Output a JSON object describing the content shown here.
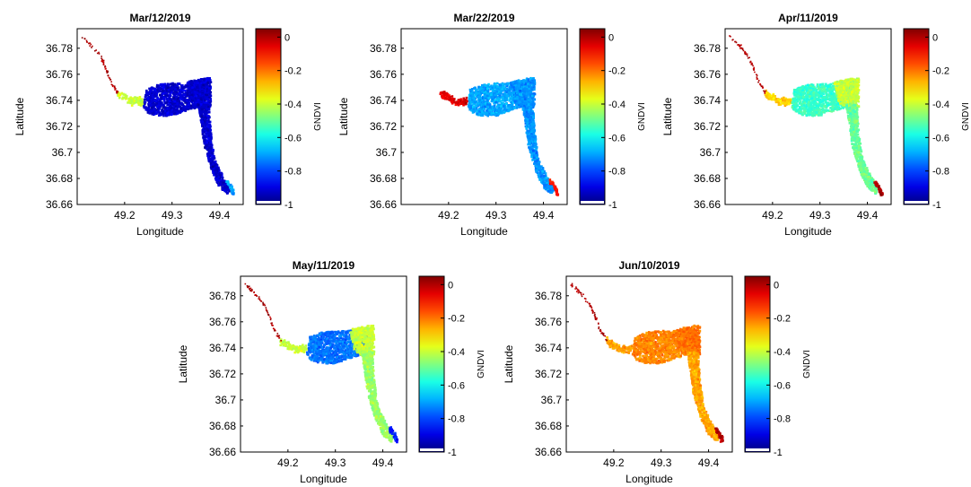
{
  "figure": {
    "panels": [
      {
        "title": "Mar/12/2019",
        "colorbar_label": "GNDVI"
      },
      {
        "title": "Mar/22/2019",
        "colorbar_label": "GNDVI"
      },
      {
        "title": "Apr/11/2019",
        "colorbar_label": "GNDVI"
      },
      {
        "title": "May/11/2019",
        "colorbar_label": "GNDVI"
      },
      {
        "title": "Jun/10/2019",
        "colorbar_label": "GNDVI"
      }
    ]
  },
  "chart_data": [
    {
      "type": "heatmap",
      "title": "Mar/12/2019",
      "xlabel": "Longitude",
      "ylabel": "Latitude",
      "colorbar_label": "GNDVI",
      "x_ticks": [
        "49.2",
        "49.3",
        "49.4"
      ],
      "y_ticks": [
        "36.78",
        "36.76",
        "36.74",
        "36.72",
        "36.7",
        "36.68",
        "36.66"
      ],
      "colorbar_ticks": [
        "0",
        "-0.2",
        "-0.4",
        "-0.6",
        "-0.8",
        "-1"
      ],
      "xlim": [
        49.1,
        49.45
      ],
      "ylim": [
        36.66,
        36.795
      ],
      "clim": [
        -1,
        0.05
      ],
      "colormap": "jet",
      "zones": {
        "upstream_channel": 0.0,
        "west_lagoon": -0.4,
        "central_basin": -0.92,
        "east_basin": -0.92,
        "south_arm": -0.92,
        "southern_tip": -0.7
      }
    },
    {
      "type": "heatmap",
      "title": "Mar/22/2019",
      "xlabel": "Longitude",
      "ylabel": "Latitude",
      "colorbar_label": "GNDVI",
      "x_ticks": [
        "49.2",
        "49.3",
        "49.4"
      ],
      "y_ticks": [
        "36.78",
        "36.76",
        "36.74",
        "36.72",
        "36.7",
        "36.68",
        "36.66"
      ],
      "colorbar_ticks": [
        "0",
        "-0.2",
        "-0.4",
        "-0.6",
        "-0.8",
        "-1"
      ],
      "xlim": [
        49.1,
        49.45
      ],
      "ylim": [
        36.66,
        36.795
      ],
      "clim": [
        -1,
        0.05
      ],
      "colormap": "jet",
      "zones": {
        "upstream_channel": null,
        "west_lagoon": -0.05,
        "central_basin": -0.7,
        "east_basin": -0.72,
        "south_arm": -0.72,
        "southern_tip": -0.1
      }
    },
    {
      "type": "heatmap",
      "title": "Apr/11/2019",
      "xlabel": "Longitude",
      "ylabel": "Latitude",
      "colorbar_label": "GNDVI",
      "x_ticks": [
        "49.2",
        "49.3",
        "49.4"
      ],
      "y_ticks": [
        "36.78",
        "36.76",
        "36.74",
        "36.72",
        "36.7",
        "36.68",
        "36.66"
      ],
      "colorbar_ticks": [
        "0",
        "-0.2",
        "-0.4",
        "-0.6",
        "-0.8",
        "-1"
      ],
      "xlim": [
        49.1,
        49.45
      ],
      "ylim": [
        36.66,
        36.795
      ],
      "clim": [
        -1,
        0.05
      ],
      "colormap": "jet",
      "zones": {
        "upstream_channel": 0.0,
        "west_lagoon": -0.3,
        "central_basin": -0.55,
        "east_basin": -0.4,
        "south_arm": -0.5,
        "southern_tip": 0.0
      }
    },
    {
      "type": "heatmap",
      "title": "May/11/2019",
      "xlabel": "Longitude",
      "ylabel": "Latitude",
      "colorbar_label": "GNDVI",
      "x_ticks": [
        "49.2",
        "49.3",
        "49.4"
      ],
      "y_ticks": [
        "36.78",
        "36.76",
        "36.74",
        "36.72",
        "36.7",
        "36.68",
        "36.66"
      ],
      "colorbar_ticks": [
        "0",
        "-0.2",
        "-0.4",
        "-0.6",
        "-0.8",
        "-1"
      ],
      "xlim": [
        49.1,
        49.45
      ],
      "ylim": [
        36.66,
        36.795
      ],
      "clim": [
        -1,
        0.05
      ],
      "colormap": "jet",
      "zones": {
        "upstream_channel": 0.0,
        "west_lagoon": -0.4,
        "central_basin": -0.75,
        "east_basin": -0.4,
        "south_arm": -0.45,
        "southern_tip": -0.85
      }
    },
    {
      "type": "heatmap",
      "title": "Jun/10/2019",
      "xlabel": "Longitude",
      "ylabel": "Latitude",
      "colorbar_label": "GNDVI",
      "x_ticks": [
        "49.2",
        "49.3",
        "49.4"
      ],
      "y_ticks": [
        "36.78",
        "36.76",
        "36.74",
        "36.72",
        "36.7",
        "36.68",
        "36.66"
      ],
      "colorbar_ticks": [
        "0",
        "-0.2",
        "-0.4",
        "-0.6",
        "-0.8",
        "-1"
      ],
      "xlim": [
        49.1,
        49.45
      ],
      "ylim": [
        36.66,
        36.795
      ],
      "clim": [
        -1,
        0.05
      ],
      "colormap": "jet",
      "zones": {
        "upstream_channel": 0.0,
        "west_lagoon": -0.25,
        "central_basin": -0.22,
        "east_basin": -0.2,
        "south_arm": -0.25,
        "southern_tip": 0.0
      }
    }
  ]
}
